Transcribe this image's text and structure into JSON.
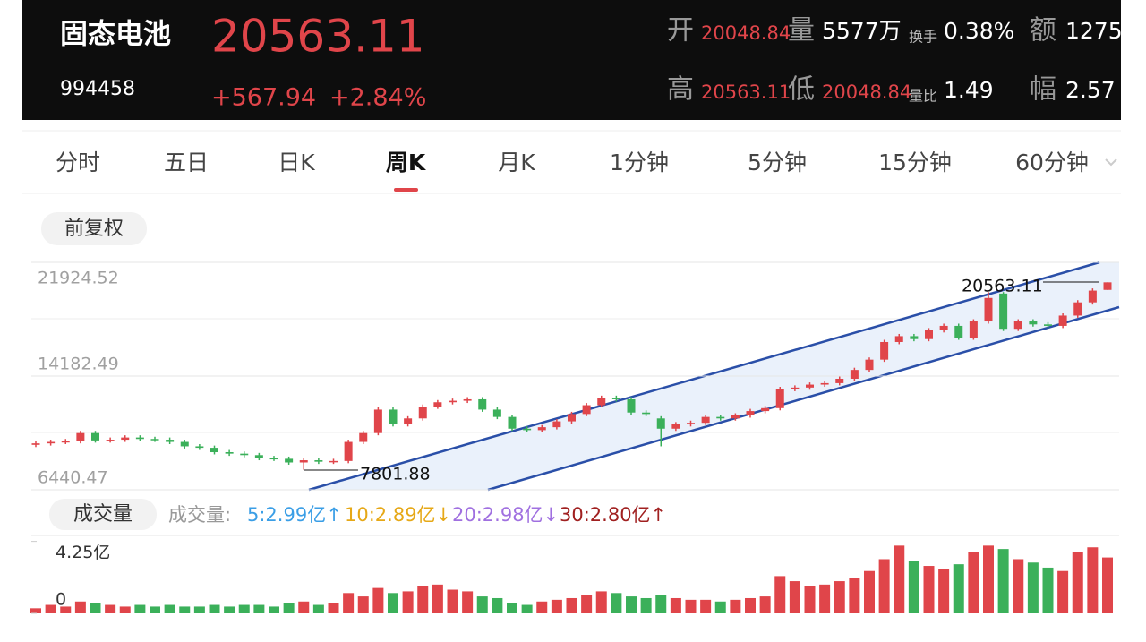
{
  "header": {
    "name": "固态电池",
    "code": "994458",
    "price": "20563.11",
    "change": "+567.94",
    "change_pct": "+2.84%",
    "stats": [
      {
        "label": "开",
        "value": "20048.84"
      },
      {
        "label": "量",
        "value": "5577万"
      },
      {
        "label": "换手",
        "value": "0.38%"
      },
      {
        "label": "额",
        "value": "1275"
      },
      {
        "label": "高",
        "value": "20563.11"
      },
      {
        "label": "低",
        "value": "20048.84"
      },
      {
        "label": "量比",
        "value": "1.49"
      },
      {
        "label": "幅",
        "value": "2.57"
      }
    ]
  },
  "tabs": [
    "分时",
    "五日",
    "日K",
    "周K",
    "月K",
    "1分钟",
    "5分钟",
    "15分钟",
    "60分钟"
  ],
  "adjust": "前复权",
  "chart_data": [
    {
      "type": "candlestick",
      "up_color": "#e0454a",
      "down_color": "#3bb05a",
      "ylim": [
        6440.47,
        21924.52
      ],
      "yticks": [
        6440.47,
        14182.49,
        21924.52
      ],
      "annotations": [
        "20563.11",
        "7801.88"
      ],
      "open": [
        9500,
        9600,
        9700,
        9750,
        10300,
        9800,
        9850,
        10000,
        9900,
        9850,
        9700,
        9400,
        9300,
        9000,
        8900,
        8800,
        8600,
        8550,
        8300,
        8450,
        8350,
        8400,
        9700,
        10300,
        11900,
        10900,
        11300,
        12100,
        12400,
        12500,
        12600,
        11900,
        11400,
        10600,
        10500,
        10700,
        11100,
        11600,
        12200,
        12700,
        12600,
        11700,
        11300,
        10600,
        10900,
        11000,
        11400,
        11300,
        11500,
        11800,
        12000,
        13300,
        13400,
        13600,
        13700,
        14000,
        14600,
        15300,
        16500,
        16900,
        16700,
        17300,
        17600,
        16800,
        17900,
        19800,
        17400,
        17900,
        17700,
        17600,
        18300,
        19200,
        20048.84
      ],
      "high": [
        9750,
        9850,
        9900,
        10450,
        10450,
        10000,
        10150,
        10150,
        10050,
        10000,
        9850,
        9550,
        9450,
        9150,
        9050,
        8950,
        8750,
        8700,
        8600,
        8600,
        8550,
        9850,
        10450,
        12050,
        12050,
        11450,
        12250,
        12550,
        12650,
        12750,
        12750,
        12050,
        11550,
        10750,
        10850,
        11250,
        11750,
        12350,
        12850,
        12850,
        12750,
        11850,
        11450,
        11050,
        11150,
        11550,
        11550,
        11650,
        11950,
        12150,
        13450,
        13550,
        13750,
        13850,
        14150,
        14750,
        15450,
        16650,
        17050,
        17050,
        17450,
        17750,
        17750,
        18050,
        19900,
        19900,
        18050,
        18050,
        17850,
        18450,
        19350,
        20150,
        20563.11
      ],
      "low": [
        9350,
        9450,
        9550,
        9600,
        9650,
        9650,
        9700,
        9750,
        9700,
        9550,
        9250,
        9150,
        8850,
        8750,
        8650,
        8450,
        8400,
        8150,
        7801.88,
        8200,
        8200,
        8250,
        9550,
        10150,
        10750,
        10750,
        11150,
        11950,
        12250,
        12350,
        11750,
        11250,
        10450,
        10350,
        10350,
        10550,
        10950,
        11450,
        12050,
        12450,
        11550,
        11450,
        9400,
        10450,
        10750,
        10850,
        11150,
        11150,
        11350,
        11650,
        11850,
        13150,
        13250,
        13450,
        13550,
        13850,
        14450,
        15150,
        16350,
        16550,
        16550,
        17150,
        16650,
        16650,
        17750,
        17250,
        17250,
        17550,
        17450,
        17450,
        18150,
        19050,
        20048.84
      ],
      "close": [
        9600,
        9700,
        9750,
        10300,
        9800,
        9850,
        10000,
        9900,
        9850,
        9700,
        9400,
        9300,
        9000,
        8900,
        8800,
        8600,
        8550,
        8300,
        8450,
        8350,
        8400,
        9700,
        10300,
        11900,
        10900,
        11300,
        12100,
        12400,
        12500,
        12600,
        11900,
        11400,
        10600,
        10500,
        10700,
        11100,
        11600,
        12200,
        12700,
        12600,
        11700,
        11600,
        10600,
        10900,
        11000,
        11400,
        11300,
        11500,
        11800,
        12000,
        13300,
        13400,
        13600,
        13700,
        14000,
        14600,
        15300,
        16500,
        16900,
        16700,
        17300,
        17600,
        16800,
        17900,
        19500,
        17400,
        17900,
        17700,
        17600,
        18300,
        19200,
        20000,
        20563.11
      ]
    },
    {
      "type": "bar",
      "title": "成交量",
      "legend": [
        "成交量:",
        "5:2.99亿↑",
        "10:2.89亿↓",
        "20:2.98亿↓",
        "30:2.80亿↑"
      ],
      "legend_colors": [
        "#999999",
        "#3a9ee6",
        "#e6a817",
        "#a070e0",
        "#a02020"
      ],
      "ylim": [
        0,
        4.6
      ],
      "yticks": [
        0,
        {
          "value": 4.25,
          "label": "4.25亿"
        }
      ],
      "values": [
        0.3,
        0.5,
        0.4,
        0.7,
        0.6,
        0.5,
        0.4,
        0.5,
        0.4,
        0.5,
        0.4,
        0.4,
        0.5,
        0.4,
        0.5,
        0.5,
        0.4,
        0.6,
        0.7,
        0.5,
        0.6,
        1.2,
        1.0,
        1.5,
        1.2,
        1.3,
        1.6,
        1.7,
        1.4,
        1.3,
        1.0,
        0.9,
        0.6,
        0.5,
        0.7,
        0.8,
        0.9,
        1.1,
        1.3,
        1.2,
        1.0,
        0.9,
        1.1,
        0.9,
        0.8,
        0.8,
        0.7,
        0.8,
        0.9,
        1.0,
        2.2,
        1.9,
        1.6,
        1.7,
        1.9,
        2.1,
        2.5,
        3.2,
        4.0,
        3.1,
        2.8,
        2.6,
        2.9,
        3.6,
        4.0,
        3.8,
        3.2,
        3.0,
        2.7,
        2.5,
        3.6,
        3.9,
        3.3
      ]
    }
  ]
}
